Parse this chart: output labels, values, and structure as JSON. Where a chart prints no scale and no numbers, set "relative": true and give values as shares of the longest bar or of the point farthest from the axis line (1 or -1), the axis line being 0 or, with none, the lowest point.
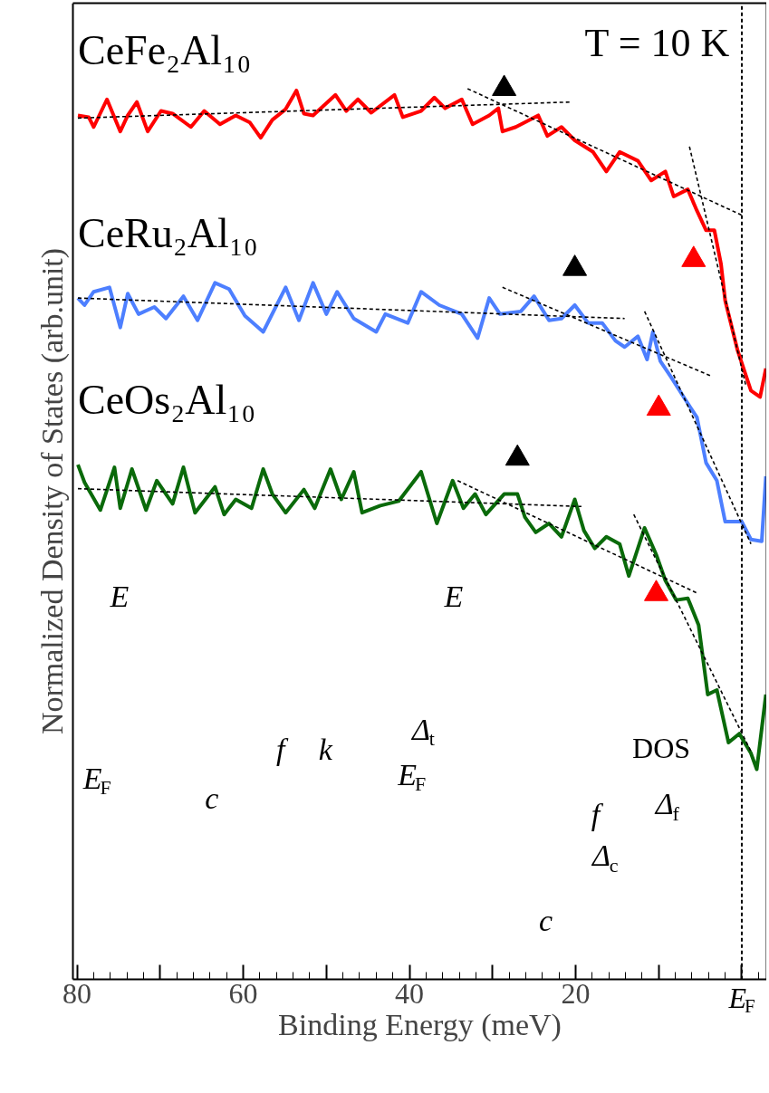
{
  "chart_data": {
    "type": "line",
    "relative": true,
    "xlabel": "Binding Energy (meV)",
    "ylabel": "Normalized Density of States (arb.unit)",
    "xlim": [
      80.5,
      -3
    ],
    "xticks": [
      80,
      {
        "value": 70,
        "label": null
      },
      60,
      {
        "value": 50,
        "label": null
      },
      40,
      {
        "value": 30,
        "label": null
      },
      20,
      {
        "value": 10,
        "label": null
      },
      {
        "value": 0,
        "label": "E$_{F}$"
      }
    ],
    "grid": false,
    "marker": "none",
    "line_style": "solid",
    "series": [
      {
        "name": "CeFe₂Al₁₀",
        "color": "#ff0000",
        "x": [
          79.9,
          78.6,
          78.0,
          76.4,
          74.8,
          73.9,
          72.8,
          71.5,
          69.9,
          68.5,
          66.3,
          64.7,
          62.8,
          60.9,
          59.2,
          57.9,
          56.5,
          54.9,
          53.6,
          52.7,
          51.6,
          48.9,
          47.6,
          46.2,
          44.6,
          41.8,
          40.8,
          38.6,
          37.0,
          35.7,
          33.7,
          32.4,
          30.4,
          29.3,
          28.8,
          27.2,
          24.5,
          23.4,
          21.7,
          20.1,
          17.9,
          16.3,
          14.7,
          12.5,
          10.9,
          9.2,
          8.2,
          6.5,
          5.4,
          4.3,
          3.3,
          2.5,
          2.0,
          0.5,
          -1.1,
          -2.2,
          -2.9
        ],
        "values": [
          0.97,
          0.968,
          0.957,
          0.988,
          0.952,
          0.97,
          0.985,
          0.952,
          0.975,
          0.972,
          0.957,
          0.975,
          0.96,
          0.97,
          0.962,
          0.945,
          0.965,
          0.977,
          0.998,
          0.972,
          0.97,
          0.993,
          0.975,
          0.988,
          0.973,
          0.993,
          0.968,
          0.975,
          0.99,
          0.978,
          0.988,
          0.96,
          0.97,
          0.978,
          0.952,
          0.957,
          0.97,
          0.947,
          0.957,
          0.942,
          0.929,
          0.907,
          0.929,
          0.919,
          0.897,
          0.907,
          0.879,
          0.887,
          0.863,
          0.841,
          0.841,
          0.803,
          0.762,
          0.706,
          0.661,
          0.654,
          0.686
        ]
      },
      {
        "name": "CeRu₂Al₁₀",
        "color": "#4d7fff",
        "x": [
          79.9,
          79.1,
          78.0,
          76.1,
          74.8,
          73.9,
          72.6,
          70.7,
          69.3,
          67.2,
          65.5,
          63.4,
          61.7,
          59.8,
          57.6,
          54.9,
          53.3,
          51.6,
          50.0,
          48.7,
          46.7,
          44.0,
          42.9,
          40.2,
          38.6,
          36.4,
          33.7,
          31.8,
          30.4,
          29.1,
          26.6,
          25.0,
          23.2,
          21.7,
          20.1,
          18.5,
          16.8,
          15.2,
          14.1,
          12.5,
          11.4,
          10.7,
          9.8,
          8.5,
          6.8,
          5.4,
          4.3,
          3.0,
          2.0,
          0.0,
          -1.1,
          -2.4,
          -2.9
        ],
        "values": [
          0.765,
          0.757,
          0.772,
          0.777,
          0.732,
          0.77,
          0.747,
          0.755,
          0.742,
          0.767,
          0.74,
          0.782,
          0.775,
          0.745,
          0.727,
          0.777,
          0.74,
          0.782,
          0.747,
          0.772,
          0.742,
          0.727,
          0.747,
          0.737,
          0.772,
          0.757,
          0.747,
          0.72,
          0.765,
          0.747,
          0.75,
          0.767,
          0.74,
          0.742,
          0.757,
          0.737,
          0.737,
          0.717,
          0.71,
          0.722,
          0.696,
          0.727,
          0.694,
          0.676,
          0.651,
          0.631,
          0.58,
          0.56,
          0.514,
          0.514,
          0.494,
          0.492,
          0.565
        ]
      },
      {
        "name": "CeOs₂Al₁₀",
        "color": "#0a6a0a",
        "x": [
          79.9,
          79.1,
          77.2,
          75.5,
          74.8,
          73.4,
          71.7,
          70.4,
          68.5,
          67.2,
          65.8,
          63.4,
          62.3,
          60.9,
          59.0,
          57.6,
          56.5,
          54.9,
          52.7,
          51.4,
          49.5,
          48.2,
          46.7,
          45.7,
          43.5,
          41.3,
          38.6,
          36.7,
          34.8,
          33.5,
          32.1,
          30.8,
          28.6,
          27.0,
          26.1,
          24.8,
          23.2,
          21.7,
          20.1,
          19.0,
          17.7,
          16.3,
          14.7,
          13.6,
          11.7,
          10.3,
          9.2,
          7.9,
          6.5,
          5.2,
          4.1,
          3.0,
          1.6,
          0.3,
          -1.1,
          -1.8,
          -2.9
        ],
        "values": [
          0.578,
          0.558,
          0.527,
          0.575,
          0.529,
          0.573,
          0.527,
          0.56,
          0.534,
          0.575,
          0.524,
          0.553,
          0.522,
          0.539,
          0.529,
          0.573,
          0.545,
          0.524,
          0.55,
          0.529,
          0.573,
          0.539,
          0.57,
          0.524,
          0.532,
          0.537,
          0.57,
          0.512,
          0.56,
          0.529,
          0.545,
          0.522,
          0.545,
          0.545,
          0.519,
          0.502,
          0.512,
          0.497,
          0.539,
          0.504,
          0.484,
          0.497,
          0.489,
          0.453,
          0.507,
          0.477,
          0.448,
          0.426,
          0.428,
          0.398,
          0.32,
          0.325,
          0.266,
          0.276,
          0.254,
          0.236,
          0.32
        ]
      },
      {
        "type": "line",
        "color": "#000000",
        "line_style": "dashed",
        "x": [
          79.9,
          20.7
        ],
        "values": [
          0.967,
          0.985
        ]
      },
      {
        "type": "line",
        "color": "#000000",
        "line_style": "dashed",
        "x": [
          33.0,
          0.0
        ],
        "values": [
          1.0,
          0.858
        ]
      },
      {
        "type": "line",
        "color": "#000000",
        "line_style": "dashed",
        "x": [
          6.3,
          -0.5
        ],
        "values": [
          0.935,
          0.666
        ]
      },
      {
        "type": "line",
        "color": "#000000",
        "line_style": "dashed",
        "x": [
          79.9,
          14.1
        ],
        "values": [
          0.765,
          0.742
        ]
      },
      {
        "type": "line",
        "color": "#000000",
        "line_style": "dashed",
        "x": [
          28.8,
          3.6
        ],
        "values": [
          0.777,
          0.677
        ]
      },
      {
        "type": "line",
        "color": "#000000",
        "line_style": "dashed",
        "x": [
          11.7,
          -1.1
        ],
        "values": [
          0.75,
          0.489
        ]
      },
      {
        "type": "line",
        "color": "#000000",
        "line_style": "dashed",
        "x": [
          79.9,
          19.3
        ],
        "values": [
          0.551,
          0.531
        ]
      },
      {
        "type": "line",
        "color": "#000000",
        "line_style": "dashed",
        "x": [
          34.2,
          5.2
        ],
        "values": [
          0.56,
          0.433
        ]
      },
      {
        "type": "line",
        "color": "#000000",
        "line_style": "dashed",
        "x": [
          13.0,
          -1.1
        ],
        "values": [
          0.522,
          0.256
        ]
      },
      {
        "type": "scatter",
        "marker": "triangle",
        "color": "#000000",
        "x": [
          28.6,
          20.1,
          27.0
        ],
        "values": [
          1.0,
          0.798,
          0.585
        ]
      },
      {
        "type": "scatter",
        "marker": "triangle",
        "color": "#ff0000",
        "x": [
          5.8,
          10.0,
          10.3
        ],
        "values": [
          0.808,
          0.641,
          0.433
        ]
      }
    ],
    "ref_lines": [
      {
        "axis": "x",
        "value": 0,
        "color": "#000000",
        "line_style": "dashed"
      }
    ],
    "annotations": [
      "T = 10 K",
      "E",
      "E$_{F}$",
      "k",
      "f",
      "c",
      "E",
      "Δ$_{t}$",
      "E$_{F}$",
      "DOS",
      "Δ$_{f}$",
      "f",
      "Δ$_{c}$",
      "c"
    ]
  }
}
